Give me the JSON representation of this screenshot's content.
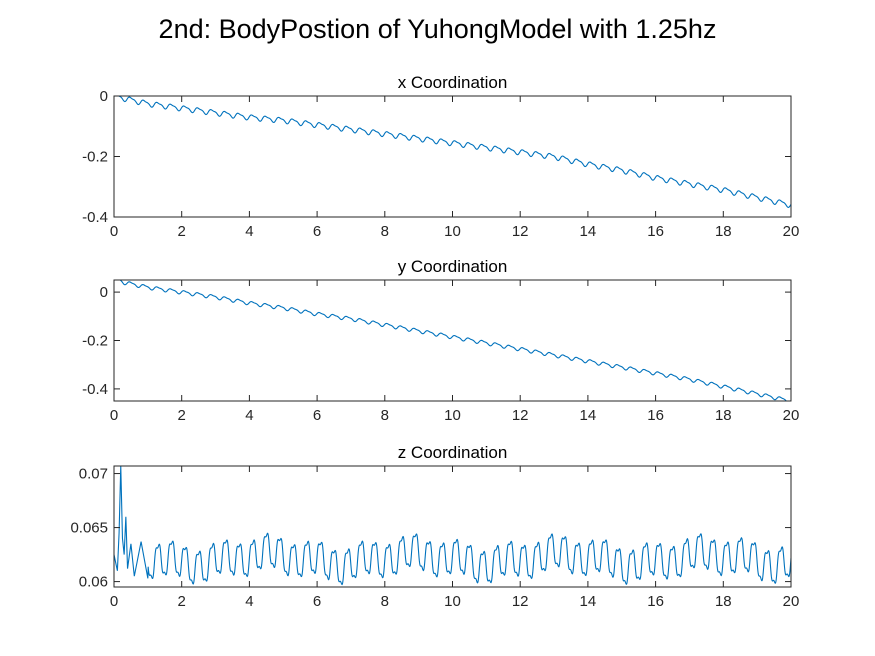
{
  "figure": {
    "title": "2nd: BodyPostion of YuhongModel with 1.25hz",
    "line_color": "#0072BD"
  },
  "chart_data": [
    {
      "type": "line",
      "title": "x Coordination",
      "xlim": [
        0,
        20
      ],
      "ylim": [
        -0.4,
        0
      ],
      "xticks": [
        0,
        2,
        4,
        6,
        8,
        10,
        12,
        14,
        16,
        18,
        20
      ],
      "yticks": [
        0,
        -0.2,
        -0.4
      ],
      "xtick_labels": [
        "0",
        "2",
        "4",
        "6",
        "8",
        "10",
        "12",
        "14",
        "16",
        "18",
        "20"
      ],
      "ytick_labels": [
        "0",
        "-0.2",
        "-0.4"
      ],
      "grid": false,
      "series": [
        {
          "x": [
            0,
            1,
            2,
            3,
            4,
            5,
            6,
            7,
            8,
            9,
            10,
            11,
            12,
            13,
            14,
            15,
            16,
            17,
            18,
            19,
            20
          ],
          "values": [
            0,
            -0.025,
            -0.04,
            -0.055,
            -0.07,
            -0.08,
            -0.095,
            -0.11,
            -0.125,
            -0.14,
            -0.155,
            -0.17,
            -0.185,
            -0.2,
            -0.225,
            -0.245,
            -0.27,
            -0.29,
            -0.31,
            -0.335,
            -0.36
          ],
          "oscillation_amplitude": 0.008,
          "oscillation_frequency_hz": 2.5
        }
      ]
    },
    {
      "type": "line",
      "title": "y Coordination",
      "xlim": [
        0,
        20
      ],
      "ylim": [
        -0.45,
        0.05
      ],
      "xticks": [
        0,
        2,
        4,
        6,
        8,
        10,
        12,
        14,
        16,
        18,
        20
      ],
      "yticks": [
        0,
        -0.2,
        -0.4
      ],
      "xtick_labels": [
        "0",
        "2",
        "4",
        "6",
        "8",
        "10",
        "12",
        "14",
        "16",
        "18",
        "20"
      ],
      "ytick_labels": [
        "0",
        "-0.2",
        "-0.4"
      ],
      "grid": false,
      "series": [
        {
          "x": [
            0,
            0.3,
            1,
            2,
            3,
            4,
            5,
            6,
            7,
            8,
            9,
            10,
            11,
            12,
            13,
            14,
            15,
            16,
            17,
            18,
            19,
            20
          ],
          "values": [
            0.06,
            0.04,
            0.02,
            0.0,
            -0.02,
            -0.045,
            -0.065,
            -0.09,
            -0.11,
            -0.135,
            -0.16,
            -0.185,
            -0.21,
            -0.235,
            -0.26,
            -0.285,
            -0.31,
            -0.335,
            -0.36,
            -0.39,
            -0.42,
            -0.45
          ],
          "oscillation_amplitude": 0.007,
          "oscillation_frequency_hz": 2.5
        }
      ]
    },
    {
      "type": "line",
      "title": "z Coordination",
      "xlim": [
        0,
        20
      ],
      "ylim": [
        0.0595,
        0.0707
      ],
      "xticks": [
        0,
        2,
        4,
        6,
        8,
        10,
        12,
        14,
        16,
        18,
        20
      ],
      "yticks": [
        0.07,
        0.065,
        0.06
      ],
      "xtick_labels": [
        "0",
        "2",
        "4",
        "6",
        "8",
        "10",
        "12",
        "14",
        "16",
        "18",
        "20"
      ],
      "ytick_labels": [
        "0.07",
        "0.065",
        "0.06"
      ],
      "grid": false,
      "series": [
        {
          "x": [
            0,
            0.1,
            0.15,
            0.2,
            0.25,
            0.3,
            0.35,
            0.4,
            0.5,
            0.6,
            0.8,
            1.0
          ],
          "values": [
            0.0625,
            0.061,
            0.0645,
            0.0707,
            0.064,
            0.0625,
            0.066,
            0.0612,
            0.0635,
            0.0605,
            0.0637,
            0.0603
          ],
          "steady_center": 0.0621,
          "steady_amplitude": 0.0016,
          "oscillation_frequency_hz": 2.5,
          "range_after_1s": [
            0.0598,
            0.0645
          ]
        }
      ]
    }
  ]
}
